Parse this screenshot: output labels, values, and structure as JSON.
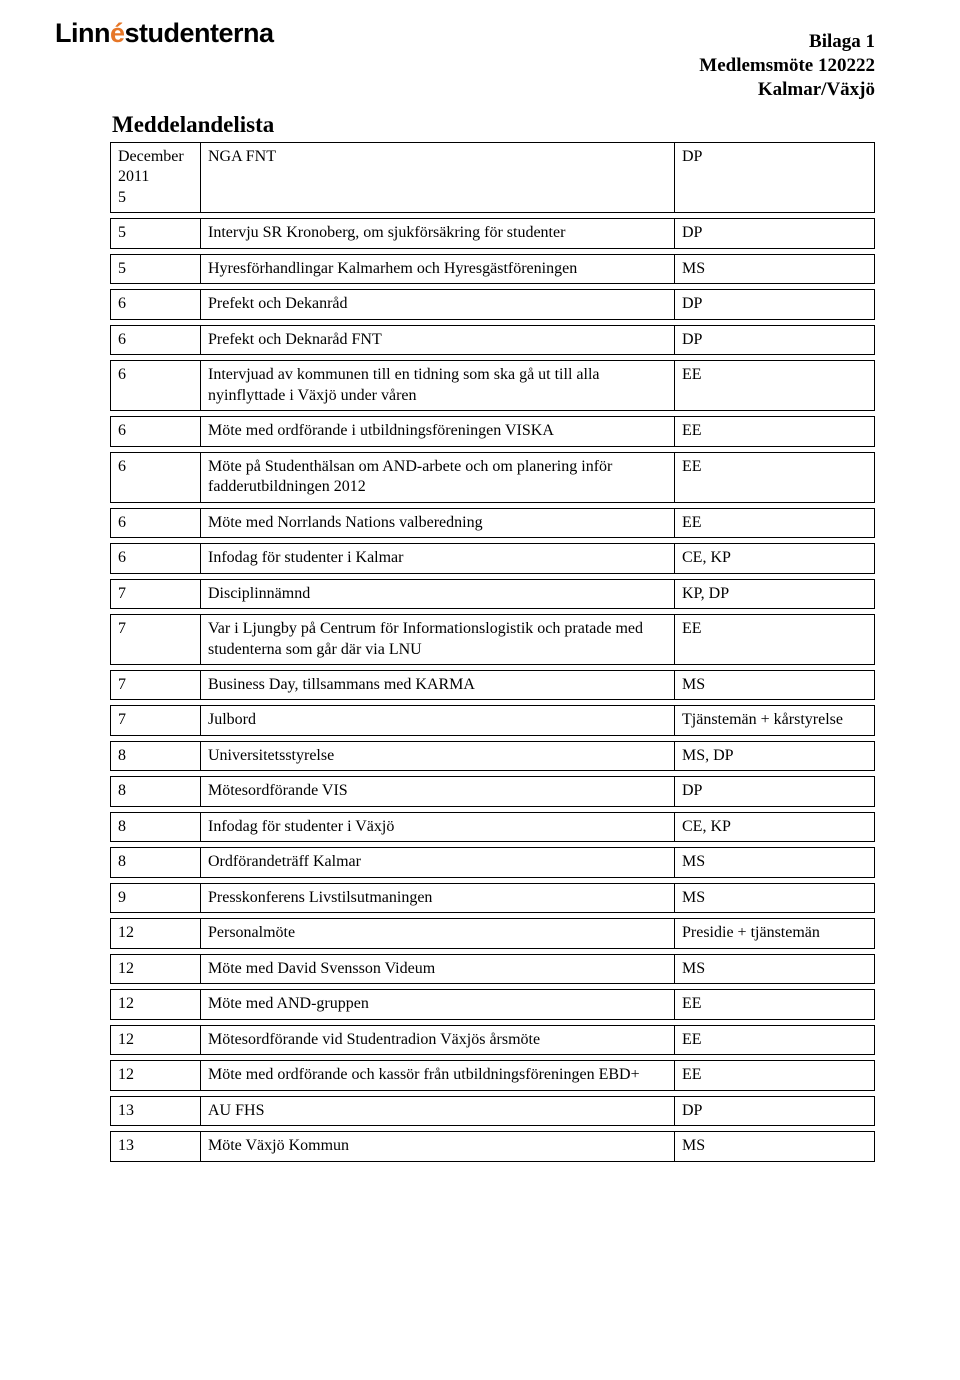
{
  "logo": {
    "pre": "Linn",
    "orange": "é",
    "post": "studenterna"
  },
  "header": {
    "l1": "Bilaga 1",
    "l2": "Medlemsmöte 120222",
    "l3": "Kalmar/Växjö"
  },
  "title": "Meddelandelista",
  "col1_header": {
    "l1": "December",
    "l2": "2011"
  },
  "rows": [
    {
      "c1": "5",
      "c2": "NGA FNT",
      "c3": "DP",
      "with_header": true
    },
    {
      "c1": "5",
      "c2": "Intervju SR Kronoberg, om sjukförsäkring för studenter",
      "c3": "DP"
    },
    {
      "c1": "5",
      "c2": "Hyresförhandlingar Kalmarhem och Hyresgästföreningen",
      "c3": "MS"
    },
    {
      "c1": "6",
      "c2": "Prefekt och Dekanråd",
      "c3": "DP"
    },
    {
      "c1": "6",
      "c2": "Prefekt och Deknaråd FNT",
      "c3": "DP"
    },
    {
      "c1": "6",
      "c2": "Intervjuad av kommunen till en tidning som ska gå ut till alla nyinflyttade i Växjö under våren",
      "c3": "EE"
    },
    {
      "c1": "6",
      "c2": "Möte med ordförande i utbildningsföreningen VISKA",
      "c3": "EE"
    },
    {
      "c1": "6",
      "c2": "Möte på Studenthälsan om AND-arbete och om planering inför fadderutbildningen 2012",
      "c3": "EE"
    },
    {
      "c1": "6",
      "c2": "Möte med Norrlands Nations valberedning",
      "c3": "EE"
    },
    {
      "c1": "6",
      "c2": "Infodag för studenter i Kalmar",
      "c3": "CE, KP"
    },
    {
      "c1": "7",
      "c2": "Disciplinnämnd",
      "c3": "KP, DP"
    },
    {
      "c1": "7",
      "c2": "Var i Ljungby på Centrum för Informationslogistik och pratade med studenterna som går där via LNU",
      "c3": "EE"
    },
    {
      "c1": "7",
      "c2": "Business Day, tillsammans med KARMA",
      "c3": "MS"
    },
    {
      "c1": "7",
      "c2": "Julbord",
      "c3": "Tjänstemän + kårstyrelse"
    },
    {
      "c1": "8",
      "c2": "Universitetsstyrelse",
      "c3": "MS, DP"
    },
    {
      "c1": "8",
      "c2": "Mötesordförande VIS",
      "c3": "DP"
    },
    {
      "c1": "8",
      "c2": "Infodag för studenter i Växjö",
      "c3": "CE, KP"
    },
    {
      "c1": "8",
      "c2": "Ordförandeträff Kalmar",
      "c3": "MS"
    },
    {
      "c1": "9",
      "c2": "Presskonferens Livstilsutmaningen",
      "c3": "MS"
    },
    {
      "c1": "12",
      "c2": "Personalmöte",
      "c3": "Presidie + tjänstemän"
    },
    {
      "c1": "12",
      "c2": "Möte med David Svensson Videum",
      "c3": "MS"
    },
    {
      "c1": "12",
      "c2": "Möte med AND-gruppen",
      "c3": "EE"
    },
    {
      "c1": "12",
      "c2": "Mötesordförande vid Studentradion Växjös årsmöte",
      "c3": "EE"
    },
    {
      "c1": "12",
      "c2": "Möte med ordförande och kassör från utbildningsföreningen EBD+",
      "c3": "EE"
    },
    {
      "c1": "13",
      "c2": "AU FHS",
      "c3": "DP"
    },
    {
      "c1": "13",
      "c2": "Möte Växjö Kommun",
      "c3": "MS"
    }
  ]
}
